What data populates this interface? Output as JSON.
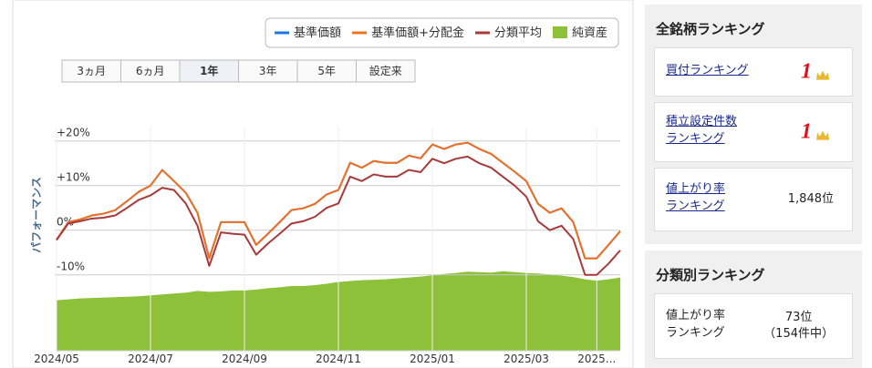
{
  "chart_data": {
    "type": "line",
    "ylabel": "パフォーマンス",
    "x": [
      0,
      0.25,
      0.5,
      0.75,
      1,
      1.25,
      1.5,
      1.75,
      2,
      2.25,
      2.5,
      2.75,
      3,
      3.25,
      3.5,
      3.75,
      4,
      4.25,
      4.5,
      4.75,
      5,
      5.25,
      5.5,
      5.75,
      6,
      6.25,
      6.5,
      6.75,
      7,
      7.25,
      7.5,
      7.75,
      8,
      8.25,
      8.5,
      8.75,
      9,
      9.25,
      9.5,
      9.75,
      10,
      10.25,
      10.5,
      10.75,
      11,
      11.25,
      11.5,
      11.75,
      12
    ],
    "xlim": [
      0,
      12
    ],
    "xticks": [
      {
        "value": 0,
        "label": "2024/05"
      },
      {
        "value": 2,
        "label": "2024/07"
      },
      {
        "value": 4,
        "label": "2024/09"
      },
      {
        "value": 6,
        "label": "2024/11"
      },
      {
        "value": 8,
        "label": "2025/01"
      },
      {
        "value": 10,
        "label": "2025/03"
      },
      {
        "value": 11.5,
        "label": "2025..."
      }
    ],
    "ylim": [
      -27,
      23
    ],
    "yticks": [
      {
        "value": 20,
        "label": "+20%"
      },
      {
        "value": 10,
        "label": "+10%"
      },
      {
        "value": 0,
        "label": "0%"
      },
      {
        "value": -10,
        "label": "-10%"
      }
    ],
    "grid": true,
    "series": [
      {
        "name": "基準価額",
        "color": "#1f77e0",
        "values": [
          -2.2,
          1.8,
          2.4,
          3.3,
          3.7,
          4.5,
          6.5,
          8.6,
          10,
          13.5,
          11,
          8.4,
          3.9,
          -6.3,
          1.8,
          1.8,
          1.8,
          -3.3,
          -0.8,
          1.8,
          4.5,
          4.9,
          5.9,
          8,
          9,
          15.1,
          14,
          15.5,
          15.1,
          15.1,
          16.7,
          16.1,
          19.2,
          18.2,
          19.2,
          19.6,
          18.2,
          17.1,
          15.1,
          13.1,
          11,
          5.9,
          3.9,
          4.9,
          1.8,
          -6.3,
          -6.3,
          -3.3,
          -0.2
        ]
      },
      {
        "name": "基準価額+分配金",
        "color": "#f07020",
        "values": [
          -2.2,
          1.8,
          2.4,
          3.3,
          3.7,
          4.5,
          6.5,
          8.6,
          10,
          13.5,
          11,
          8.4,
          3.9,
          -6.3,
          1.8,
          1.8,
          1.8,
          -3.3,
          -0.8,
          1.8,
          4.5,
          4.9,
          5.9,
          8,
          9,
          15.1,
          14,
          15.5,
          15.1,
          15.1,
          16.7,
          16.1,
          19.2,
          18.2,
          19.2,
          19.6,
          18.2,
          17.1,
          15.1,
          13.1,
          11,
          5.9,
          3.9,
          4.9,
          1.8,
          -6.3,
          -6.3,
          -3.3,
          -0.2
        ]
      },
      {
        "name": "分類平均",
        "color": "#a83a3a",
        "values": [
          -2.2,
          1.5,
          2,
          2.6,
          2.8,
          3.3,
          5,
          6.8,
          7.8,
          9.5,
          9,
          6,
          1,
          -8,
          -0.5,
          -0.8,
          -1,
          -5.5,
          -3,
          -0.8,
          1.5,
          2,
          3,
          5,
          6,
          12,
          11,
          12.5,
          12,
          12,
          13.5,
          13,
          16,
          15,
          16,
          16.5,
          15,
          14,
          12,
          10,
          7.5,
          2,
          0,
          1,
          -2,
          -10,
          -10,
          -7.5,
          -4.5
        ]
      },
      {
        "name": "純資産",
        "color": "#8dc13a",
        "kind": "area",
        "values": [
          -15.7,
          -15.5,
          -15.3,
          -15.2,
          -15.1,
          -15.0,
          -14.9,
          -14.8,
          -14.6,
          -14.4,
          -14.2,
          -14.0,
          -13.6,
          -13.8,
          -13.7,
          -13.5,
          -13.5,
          -13.3,
          -13.0,
          -12.8,
          -12.5,
          -12.5,
          -12.3,
          -12.0,
          -11.6,
          -11.4,
          -11.2,
          -11.1,
          -11.0,
          -10.8,
          -10.6,
          -10.4,
          -10.1,
          -9.8,
          -9.6,
          -9.3,
          -9.4,
          -9.5,
          -9.2,
          -9.4,
          -9.6,
          -9.7,
          -9.9,
          -10.2,
          -10.5,
          -11.0,
          -11.3,
          -11.0,
          -10.6
        ]
      }
    ]
  },
  "period_tabs": {
    "labels": [
      "3ヵ月",
      "6ヵ月",
      "1年",
      "3年",
      "5年",
      "設定来"
    ],
    "selected_index": 2
  },
  "sidebar": {
    "all_ranking": {
      "title": "全銘柄ランキング",
      "items": [
        {
          "label_lines": [
            "買付ランキング"
          ],
          "rank": "1"
        },
        {
          "label_lines": [
            "積立設定件数",
            "ランキング"
          ],
          "rank": "1"
        },
        {
          "label_lines": [
            "値上がり率",
            "ランキング"
          ],
          "value": "1,848位"
        }
      ]
    },
    "category_ranking": {
      "title": "分類別ランキング",
      "items": [
        {
          "label_lines": [
            "値上がり率",
            "ランキング"
          ],
          "value_lines": [
            "73位",
            "（154件中）"
          ]
        }
      ]
    }
  }
}
